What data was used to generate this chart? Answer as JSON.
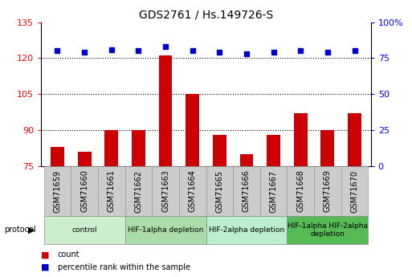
{
  "title": "GDS2761 / Hs.149726-S",
  "samples": [
    "GSM71659",
    "GSM71660",
    "GSM71661",
    "GSM71662",
    "GSM71663",
    "GSM71664",
    "GSM71665",
    "GSM71666",
    "GSM71667",
    "GSM71668",
    "GSM71669",
    "GSM71670"
  ],
  "bar_values": [
    83,
    81,
    90,
    90,
    121,
    105,
    88,
    80,
    88,
    97,
    90,
    97
  ],
  "percentile_values": [
    80,
    79,
    81,
    80,
    83,
    80,
    79,
    78,
    79,
    80,
    79,
    80
  ],
  "ylim_left": [
    75,
    135
  ],
  "yticks_left": [
    75,
    90,
    105,
    120,
    135
  ],
  "ylim_right": [
    0,
    100
  ],
  "yticks_right": [
    0,
    25,
    50,
    75,
    100
  ],
  "bar_color": "#cc0000",
  "dot_color": "#0000cc",
  "protocol_groups": [
    {
      "label": "control",
      "span": [
        0,
        3
      ],
      "color": "#cceecc"
    },
    {
      "label": "HIF-1alpha depletion",
      "span": [
        3,
        6
      ],
      "color": "#aaddaa"
    },
    {
      "label": "HIF-2alpha depletion",
      "span": [
        6,
        9
      ],
      "color": "#bbeecc"
    },
    {
      "label": "HIF-1alpha HIF-2alpha\ndepletion",
      "span": [
        9,
        12
      ],
      "color": "#55bb55"
    }
  ],
  "sample_box_color": "#cccccc",
  "sample_box_edge": "#999999",
  "legend_count_color": "#cc0000",
  "legend_dot_color": "#0000cc",
  "gridline_ticks": [
    90,
    105,
    120
  ]
}
